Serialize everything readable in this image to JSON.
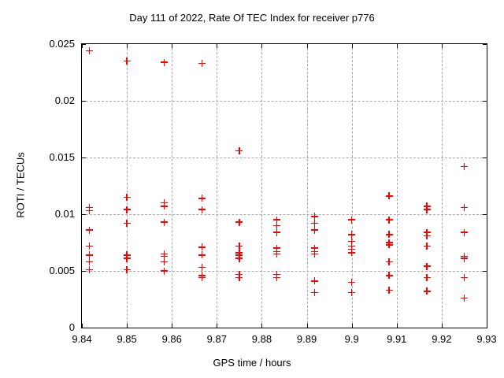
{
  "chart_data": {
    "type": "scatter",
    "title": "Day 111 of 2022, Rate Of TEC Index for receiver p776",
    "xlabel": "GPS time / hours",
    "ylabel": "ROTI / TECUs",
    "xlim": [
      9.84,
      9.93
    ],
    "ylim": [
      0,
      0.025
    ],
    "xticks": [
      9.84,
      9.85,
      9.86,
      9.87,
      9.88,
      9.89,
      9.9,
      9.91,
      9.92,
      9.93
    ],
    "xtick_labels": [
      "9.84",
      "9.85",
      "9.86",
      "9.87",
      "9.88",
      "9.89",
      "9.9",
      "9.91",
      "9.92",
      "9.93"
    ],
    "yticks": [
      0,
      0.005,
      0.01,
      0.015,
      0.02,
      0.025
    ],
    "ytick_labels": [
      "0",
      "0.005",
      "0.01",
      "0.015",
      "0.02",
      "0.025"
    ],
    "grid": true,
    "legend": "none",
    "marker": "plus",
    "marker_color": "#ff0000",
    "background_color": "#ffffff",
    "grid_color": "#a8a8a8",
    "points": [
      [
        9.8417,
        0.0244
      ],
      [
        9.8417,
        0.0106
      ],
      [
        9.8417,
        0.0103
      ],
      [
        9.8417,
        0.0086
      ],
      [
        9.8417,
        0.0072
      ],
      [
        9.8417,
        0.0064
      ],
      [
        9.8417,
        0.0058
      ],
      [
        9.8417,
        0.0051
      ],
      [
        9.85,
        0.0235
      ],
      [
        9.85,
        0.0115
      ],
      [
        9.85,
        0.0104
      ],
      [
        9.85,
        0.0092
      ],
      [
        9.85,
        0.0064
      ],
      [
        9.85,
        0.0061
      ],
      [
        9.85,
        0.0051
      ],
      [
        9.8583,
        0.0234
      ],
      [
        9.8583,
        0.011
      ],
      [
        9.8583,
        0.0107
      ],
      [
        9.8583,
        0.0093
      ],
      [
        9.8583,
        0.0065
      ],
      [
        9.8583,
        0.0063
      ],
      [
        9.8583,
        0.0058
      ],
      [
        9.8583,
        0.005
      ],
      [
        9.8667,
        0.0233
      ],
      [
        9.8667,
        0.0114
      ],
      [
        9.8667,
        0.0104
      ],
      [
        9.8667,
        0.0071
      ],
      [
        9.8667,
        0.0064
      ],
      [
        9.8667,
        0.0053
      ],
      [
        9.8667,
        0.0046
      ],
      [
        9.8667,
        0.0044
      ],
      [
        9.875,
        0.0156
      ],
      [
        9.875,
        0.0093
      ],
      [
        9.875,
        0.0072
      ],
      [
        9.875,
        0.0066
      ],
      [
        9.875,
        0.0064
      ],
      [
        9.875,
        0.0061
      ],
      [
        9.875,
        0.0047
      ],
      [
        9.875,
        0.0044
      ],
      [
        9.8833,
        0.0095
      ],
      [
        9.8833,
        0.009
      ],
      [
        9.8833,
        0.0084
      ],
      [
        9.8833,
        0.007
      ],
      [
        9.8833,
        0.0067
      ],
      [
        9.8833,
        0.0065
      ],
      [
        9.8833,
        0.0047
      ],
      [
        9.8833,
        0.0044
      ],
      [
        9.8917,
        0.0098
      ],
      [
        9.8917,
        0.0092
      ],
      [
        9.8917,
        0.0086
      ],
      [
        9.8917,
        0.007
      ],
      [
        9.8917,
        0.0067
      ],
      [
        9.8917,
        0.0065
      ],
      [
        9.8917,
        0.0041
      ],
      [
        9.8917,
        0.0031
      ],
      [
        9.9,
        0.0095
      ],
      [
        9.9,
        0.0082
      ],
      [
        9.9,
        0.0076
      ],
      [
        9.9,
        0.0072
      ],
      [
        9.9,
        0.0069
      ],
      [
        9.9,
        0.0066
      ],
      [
        9.9,
        0.004
      ],
      [
        9.9,
        0.0031
      ],
      [
        9.9083,
        0.0116
      ],
      [
        9.9083,
        0.0095
      ],
      [
        9.9083,
        0.0082
      ],
      [
        9.9083,
        0.0075
      ],
      [
        9.9083,
        0.0073
      ],
      [
        9.9083,
        0.0058
      ],
      [
        9.9083,
        0.0046
      ],
      [
        9.9083,
        0.0033
      ],
      [
        9.9167,
        0.0107
      ],
      [
        9.9167,
        0.0104
      ],
      [
        9.9167,
        0.0084
      ],
      [
        9.9167,
        0.0081
      ],
      [
        9.9167,
        0.0072
      ],
      [
        9.9167,
        0.0054
      ],
      [
        9.9167,
        0.0044
      ],
      [
        9.9167,
        0.0032
      ],
      [
        9.925,
        0.0142
      ],
      [
        9.925,
        0.0106
      ],
      [
        9.925,
        0.0084
      ],
      [
        9.925,
        0.0063
      ],
      [
        9.925,
        0.0061
      ],
      [
        9.925,
        0.0044
      ],
      [
        9.925,
        0.0026
      ]
    ]
  }
}
